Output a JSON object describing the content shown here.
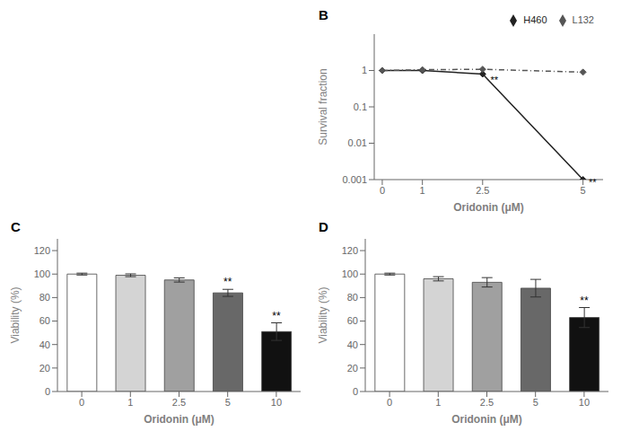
{
  "chart_data": [
    {
      "type": "line",
      "title": "B",
      "x": [
        0,
        1,
        2.5,
        5
      ],
      "series": [
        {
          "name": "H460",
          "color": "#222222",
          "values": [
            1.0,
            1.0,
            0.8,
            0.001
          ],
          "marker": "diamond",
          "line_style": "solid"
        },
        {
          "name": "L132",
          "color": "#555555",
          "values": [
            1.0,
            1.05,
            1.08,
            0.9
          ],
          "marker": "diamond",
          "line_style": "dashdot"
        }
      ],
      "xlabel": "Oridonin (μM)",
      "ylabel": "Survival fraction",
      "xlim": [
        -0.2,
        5.5
      ],
      "ylim": [
        0.001,
        10
      ],
      "xticks": [
        0,
        1,
        2.5,
        5
      ],
      "yticks": [
        0.001,
        0.01,
        0.1,
        1
      ],
      "log": "y",
      "legend": "upper right",
      "grid": false,
      "annotations": [
        {
          "text": "**",
          "x": 2.65,
          "y": 0.55
        },
        {
          "text": "**",
          "x": 5.1,
          "y": 0.00085
        }
      ]
    },
    {
      "type": "bar",
      "title": "C",
      "categories": [
        "0",
        "1",
        "2.5",
        "5",
        "10"
      ],
      "values": [
        100,
        99,
        95,
        84,
        51
      ],
      "errors": [
        0.8,
        1.2,
        1.8,
        3.0,
        7.5
      ],
      "colors": [
        "#ffffff",
        "#d4d4d4",
        "#a0a0a0",
        "#686868",
        "#111111"
      ],
      "xlabel": "Oridonin (μM)",
      "ylabel": "Viability (%)",
      "ylim": [
        0,
        130
      ],
      "yticks": [
        0,
        20,
        40,
        60,
        80,
        100,
        120
      ],
      "grid": false,
      "annotations": [
        {
          "text": "**",
          "category": "5"
        },
        {
          "text": "**",
          "category": "10"
        }
      ]
    },
    {
      "type": "bar",
      "title": "D",
      "categories": [
        "0",
        "1",
        "2.5",
        "5",
        "10"
      ],
      "values": [
        100,
        96,
        93,
        88,
        63
      ],
      "errors": [
        0.8,
        1.8,
        4.0,
        7.5,
        8.5
      ],
      "colors": [
        "#ffffff",
        "#d4d4d4",
        "#a0a0a0",
        "#686868",
        "#111111"
      ],
      "xlabel": "Oridonin (μM)",
      "ylabel": "Viability (%)",
      "ylim": [
        0,
        130
      ],
      "yticks": [
        0,
        20,
        40,
        60,
        80,
        100,
        120
      ],
      "grid": false,
      "annotations": [
        {
          "text": "**",
          "category": "10"
        }
      ]
    }
  ]
}
